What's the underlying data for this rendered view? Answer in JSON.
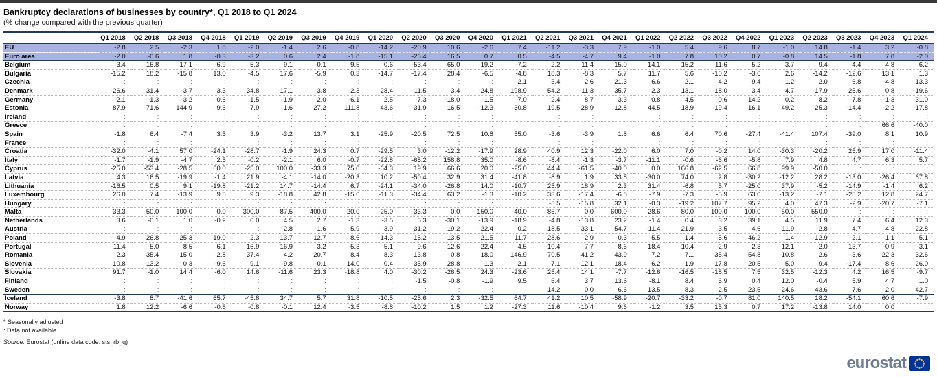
{
  "branding": {
    "logo_text": "eurostat"
  },
  "footer": {
    "note_asterisk": "* Seasonally adjusted",
    "note_colon": ": Data not available",
    "source_label": "Source:",
    "source_text": " Eurostat (online data code: sts_rb_q)"
  },
  "colors": {
    "highlight_row_bg": "#a9b3e1",
    "table_border": "#233a5e",
    "logo_gray_blue": "#6e7b93",
    "flag_blue": "#003399",
    "star_yellow": "#ffcc00"
  },
  "chart_data": {
    "type": "table",
    "title": "Bankruptcy declarations of businesses by country*, Q1 2018 to Q1 2024",
    "subtitle": "(% change compared with the previous quarter)",
    "unit": "% change compared with the previous quarter",
    "not_available_symbol": ":",
    "columns": [
      "Q1 2018",
      "Q2 2018",
      "Q3 2018",
      "Q4 2018",
      "Q1 2019",
      "Q2 2019",
      "Q3 2019",
      "Q4 2019",
      "Q1 2020",
      "Q2 2020",
      "Q3 2020",
      "Q4 2020",
      "Q1 2021",
      "Q2 2021",
      "Q3 2021",
      "Q4 2021",
      "Q1 2022",
      "Q2 2022",
      "Q3 2022",
      "Q4 2022",
      "Q1 2023",
      "Q2 2023",
      "Q3 2023",
      "Q4 2023",
      "Q1 2024"
    ],
    "rows": [
      {
        "label": "EU",
        "group": "aggregate",
        "values": [
          "-2.8",
          "2.5",
          "-2.3",
          "1.8",
          "-2.0",
          "-1.4",
          "2.6",
          "-0.8",
          "-14.2",
          "-20.9",
          "10.6",
          "-2.6",
          "7.4",
          "-11.2",
          "-3.3",
          "7.9",
          "-1.0",
          "5.4",
          "9.6",
          "8.7",
          "-1.0",
          "14.8",
          "-1.4",
          "3.2",
          "-0.8"
        ]
      },
      {
        "label": "Euro area",
        "group": "aggregate",
        "values": [
          "-2.0",
          "-0.6",
          "1.8",
          "-0.3",
          "-3.2",
          "0.6",
          "2.4",
          "-1.8",
          "-15.1",
          "-26.4",
          "16.5",
          "0.7",
          "0.5",
          "-4.5",
          "-4.7",
          "9.4",
          "-1.0",
          "7.8",
          "10.2",
          "0.7",
          "-0.8",
          "14.5",
          "-1.8",
          "7.8",
          "-2.0"
        ]
      },
      {
        "label": "Belgium",
        "group": "member",
        "values": [
          "-3.4",
          "-16.8",
          "17.1",
          "6.9",
          "-5.3",
          "9.1",
          "-0.1",
          "-9.5",
          "0.6",
          "-53.4",
          "65.0",
          "-19.2",
          "-7.2",
          "2.2",
          "11.4",
          "15.0",
          "14.1",
          "15.2",
          "-11.6",
          "5.2",
          "3.7",
          "9.4",
          "-4.4",
          "4.8",
          "6.2"
        ]
      },
      {
        "label": "Bulgaria",
        "group": "member",
        "values": [
          "-15.2",
          "18.2",
          "-15.8",
          "13.0",
          "-4.5",
          "17.6",
          "-5.9",
          "0.3",
          "-14.7",
          "-17.4",
          "28.4",
          "-6.5",
          "-4.8",
          "18.3",
          "-8.3",
          "5.7",
          "11.7",
          "5.6",
          "-10.2",
          "-3.6",
          "2.6",
          "-14.2",
          "-12.6",
          "13.1",
          "1.3"
        ]
      },
      {
        "label": "Czechia",
        "group": "member",
        "values": [
          ":",
          ":",
          ":",
          ":",
          ":",
          ":",
          ":",
          ":",
          ":",
          ":",
          ":",
          ":",
          "2.1",
          "3.4",
          "2.6",
          "21.3",
          "-6.6",
          "2.1",
          "-4.2",
          "-9.4",
          "-1.2",
          "2.0",
          "6.8",
          "-4.8",
          "13.3"
        ]
      },
      {
        "label": "Denmark",
        "group": "member",
        "values": [
          "-26.6",
          "31.4",
          "-3.7",
          "3.3",
          "34.8",
          "-17.1",
          "-3.8",
          "-2.3",
          "-28.4",
          "11.5",
          "3.4",
          "-24.8",
          "198.9",
          "-54.2",
          "-11.3",
          "35.7",
          "2.3",
          "13.1",
          "-18.0",
          "3.4",
          "-4.7",
          "-17.9",
          "25.6",
          "0.8",
          "-19.6"
        ]
      },
      {
        "label": "Germany",
        "group": "member",
        "values": [
          "-2.1",
          "-1.3",
          "-3.2",
          "-0.6",
          "1.5",
          "-1.9",
          "2.0",
          "-6.1",
          "2.5",
          "-7.3",
          "-18.0",
          "-1.5",
          "7.0",
          "-2.4",
          "-8.7",
          "3.3",
          "0.8",
          "4.5",
          "-0.6",
          "14.2",
          "-0.2",
          "8.2",
          "7.8",
          "-1.3",
          "-31.0"
        ]
      },
      {
        "label": "Estonia",
        "group": "member",
        "values": [
          "87.9",
          "-71.6",
          "144.9",
          "-9.6",
          "7.9",
          "1.6",
          "-27.2",
          "111.8",
          "-43.6",
          "31.9",
          "16.5",
          "-12.3",
          "-30.8",
          "19.5",
          "-28.9",
          "-12.8",
          "44.5",
          "-18.9",
          "-19.4",
          "16.1",
          "49.2",
          "25.3",
          "-14.4",
          "-2.2",
          "17.8"
        ]
      },
      {
        "label": "Ireland",
        "group": "member",
        "values": [
          ":",
          ":",
          ":",
          ":",
          ":",
          ":",
          ":",
          ":",
          ":",
          ":",
          ":",
          ":",
          ":",
          ":",
          ":",
          ":",
          ":",
          ":",
          ":",
          ":",
          ":",
          ":",
          ":",
          ":",
          ":"
        ]
      },
      {
        "label": "Greece",
        "group": "member",
        "values": [
          ":",
          ":",
          ":",
          ":",
          ":",
          ":",
          ":",
          ":",
          ":",
          ":",
          ":",
          ":",
          ":",
          ":",
          ":",
          ":",
          ":",
          ":",
          ":",
          ":",
          ":",
          ":",
          ":",
          "66.6",
          "-40.0"
        ]
      },
      {
        "label": "Spain",
        "group": "member",
        "values": [
          "-1.8",
          "6.4",
          "-7.4",
          "3.5",
          "3.9",
          "-3.2",
          "13.7",
          "3.1",
          "-25.9",
          "-20.5",
          "72.5",
          "10.8",
          "55.0",
          "-3.6",
          "-3.9",
          "1.8",
          "6.6",
          "6.4",
          "70.6",
          "-27.4",
          "-41.4",
          "107.4",
          "-39.0",
          "8.1",
          "10.9"
        ]
      },
      {
        "label": "France",
        "group": "member",
        "values": [
          ":",
          ":",
          ":",
          ":",
          ":",
          ":",
          ":",
          ":",
          ":",
          ":",
          ":",
          ":",
          ":",
          ":",
          ":",
          ":",
          ":",
          ":",
          ":",
          ":",
          ":",
          ":",
          ":",
          ":",
          ":"
        ]
      },
      {
        "label": "Croatia",
        "group": "member",
        "values": [
          "-32.0",
          "-4.1",
          "57.0",
          "-24.1",
          "-28.7",
          "-1.9",
          "24.3",
          "0.7",
          "-29.5",
          "3.0",
          "-12.2",
          "-17.9",
          "28.9",
          "40.9",
          "12.3",
          "-22.0",
          "6.0",
          "7.0",
          "-0.2",
          "14.0",
          "-30.3",
          "-20.2",
          "25.9",
          "17.0",
          "-11.4"
        ]
      },
      {
        "label": "Italy",
        "group": "member",
        "values": [
          "-1.7",
          "-1.9",
          "-4.7",
          "2.5",
          "-0.2",
          "-2.1",
          "6.0",
          "-0.7",
          "-22.8",
          "-65.2",
          "158.8",
          "35.0",
          "-8.6",
          "-8.4",
          "-1.3",
          "-3.7",
          "-11.1",
          "-0.6",
          "-6.6",
          "-5.8",
          "7.9",
          "4.8",
          "4.7",
          "6.3",
          "5.7"
        ]
      },
      {
        "label": "Cyprus",
        "group": "member",
        "values": [
          "-25.0",
          "-53.4",
          "-28.5",
          "60.0",
          "-25.0",
          "100.0",
          "-33.3",
          "75.0",
          "-64.3",
          "19.9",
          "66.6",
          "20.0",
          "-25.0",
          "44.4",
          "-61.5",
          "-40.0",
          "0.0",
          "166.8",
          "-62.5",
          "66.8",
          "99.9",
          "-50.0",
          ":",
          ":",
          ":"
        ]
      },
      {
        "label": "Latvia",
        "group": "member",
        "values": [
          "4.3",
          "16.5",
          "-19.9",
          "-1.4",
          "21.9",
          "-4.1",
          "-14.0",
          "-20.3",
          "10.2",
          "-50.4",
          "32.9",
          "31.4",
          "-41.8",
          "-8.9",
          "1.9",
          "33.8",
          "-30.0",
          "74.0",
          "2.8",
          "-30.2",
          "-12.2",
          "28.2",
          "-13.0",
          "-26.4",
          "67.8"
        ]
      },
      {
        "label": "Lithuania",
        "group": "member",
        "values": [
          "-16.5",
          "0.5",
          "9.1",
          "-19.8",
          "-21.2",
          "14.7",
          "-14.4",
          "6.7",
          "-24.1",
          "-34.0",
          "-26.8",
          "14.0",
          "-10.7",
          "25.9",
          "18.9",
          "2.3",
          "31.4",
          "-6.8",
          "5.7",
          "-25.0",
          "37.9",
          "-5.2",
          "-14.9",
          "-1.4",
          "6.2"
        ]
      },
      {
        "label": "Luxembourg",
        "group": "member",
        "values": [
          "26.0",
          "7.4",
          "-13.9",
          "9.5",
          "9.3",
          "-18.8",
          "42.8",
          "-15.6",
          "-11.3",
          "-34.4",
          "63.2",
          "-1.3",
          "-10.2",
          "33.6",
          "-17.4",
          "-6.8",
          "-7.9",
          "-7.3",
          "-5.9",
          "63.0",
          "-13.2",
          "-7.1",
          "-25.2",
          "12.8",
          "24.7"
        ]
      },
      {
        "label": "Hungary",
        "group": "member",
        "values": [
          ":",
          ":",
          ":",
          ":",
          ":",
          ":",
          ":",
          ":",
          ":",
          ":",
          ":",
          ":",
          ":",
          "-5.5",
          "-15.8",
          "32.1",
          "-0.3",
          "-19.2",
          "107.7",
          "95.2",
          "4.0",
          "47.3",
          "-2.9",
          "-20.7",
          "-7.1"
        ]
      },
      {
        "label": "Malta",
        "group": "member",
        "values": [
          "-33.3",
          "-50.0",
          "100.0",
          "0.0",
          "300.0",
          "-87.5",
          "400.0",
          "-20.0",
          "-25.0",
          "-33.3",
          "0.0",
          "150.0",
          "40.0",
          "-85.7",
          "0.0",
          "600.0",
          "-28.6",
          "-80.0",
          "100.0",
          "100.0",
          "-50.0",
          "550.0",
          ":",
          ":",
          ":"
        ]
      },
      {
        "label": "Netherlands",
        "group": "member",
        "values": [
          "3.6",
          "-0.1",
          "1.0",
          "-0.2",
          "0.0",
          "4.5",
          "2.7",
          "-1.3",
          "-3.5",
          "5.3",
          "-30.1",
          "-13.9",
          "-18.9",
          "-4.8",
          "-13.8",
          "23.2",
          "-1.4",
          "0.4",
          "3.2",
          "39.1",
          "4.5",
          "11.9",
          "7.4",
          "6.4",
          "12.3"
        ]
      },
      {
        "label": "Austria",
        "group": "member",
        "values": [
          ":",
          ":",
          ":",
          ":",
          ":",
          "2.8",
          "-1.6",
          "-5.9",
          "-3.9",
          "-31.2",
          "-19.2",
          "-22.4",
          "0.2",
          "18.5",
          "33.1",
          "54.7",
          "-11.4",
          "21.9",
          "-3.5",
          "-4.6",
          "11.9",
          "-2.8",
          "4.7",
          "4.8",
          "22.8"
        ]
      },
      {
        "label": "Poland",
        "group": "member",
        "values": [
          "-4.9",
          "26.8",
          "-25.3",
          "19.0",
          "-2.3",
          "-13.7",
          "12.7",
          "8.6",
          "-14.3",
          "15.2",
          "-13.5",
          "-21.5",
          "11.7",
          "-28.6",
          "2.9",
          "-0.3",
          "-5.5",
          "-1.4",
          "-5.6",
          "46.2",
          "1.4",
          "-12.9",
          "-2.1",
          "1.1",
          "-5.1"
        ]
      },
      {
        "label": "Portugal",
        "group": "member",
        "values": [
          "-11.4",
          "-5.0",
          "8.5",
          "-6.1",
          "-16.9",
          "16.9",
          "3.2",
          "-5.3",
          "-5.1",
          "9.6",
          "12.6",
          "-22.4",
          "4.5",
          "-10.4",
          "7.7",
          "-8.6",
          "-18.4",
          "10.4",
          "-2.9",
          "2.3",
          "12.1",
          "-2.0",
          "13.7",
          "-0.9",
          "-3.1"
        ]
      },
      {
        "label": "Romania",
        "group": "member",
        "values": [
          "2.3",
          "35.4",
          "-15.0",
          "-2.8",
          "37.4",
          "-4.2",
          "-20.7",
          "8.4",
          "8.3",
          "-13.8",
          "-0.8",
          "18.0",
          "146.9",
          "-70.5",
          "41.2",
          "-43.9",
          "-7.2",
          "7.1",
          "-35.4",
          "54.8",
          "-10.8",
          "2.6",
          "-3.6",
          "-22.3",
          "32.6"
        ]
      },
      {
        "label": "Slovenia",
        "group": "member",
        "values": [
          "10.8",
          "-13.2",
          "0.3",
          "-9.6",
          "9.1",
          "-9.8",
          "-0.1",
          "14.0",
          "0.4",
          "-35.9",
          "28.8",
          "-1.3",
          "-2.1",
          "-7.1",
          "-12.1",
          "18.4",
          "-6.2",
          "-1.9",
          "-17.8",
          "20.5",
          "5.0",
          "-9.4",
          "-17.4",
          "8.6",
          "26.0"
        ]
      },
      {
        "label": "Slovakia",
        "group": "member",
        "values": [
          "91.7",
          "-1.0",
          "14.4",
          "-6.0",
          "14.6",
          "-11.6",
          "23.3",
          "-18.8",
          "4.0",
          "-30.2",
          "-26.5",
          "24.3",
          "-23.6",
          "25.4",
          "14.1",
          "-7.7",
          "-12.6",
          "-16.5",
          "-18.5",
          "7.5",
          "32.5",
          "-12.3",
          "4.2",
          "16.5",
          "-9.7"
        ]
      },
      {
        "label": "Finland",
        "group": "member",
        "values": [
          ":",
          ":",
          ":",
          ":",
          ":",
          ":",
          ":",
          ":",
          ":",
          "-1.5",
          "-0.8",
          "-1.9",
          "9.5",
          "6.4",
          "3.7",
          "13.6",
          "-8.1",
          "8.4",
          "6.9",
          "0.4",
          "12.0",
          "-0.4",
          "5.9",
          "4.7",
          "1.0"
        ]
      },
      {
        "label": "Sweden",
        "group": "member",
        "values": [
          ":",
          ":",
          ":",
          ":",
          ":",
          ":",
          ":",
          ":",
          ":",
          ":",
          ":",
          ":",
          ":",
          "-14.2",
          "0.0",
          "-6.6",
          "13.5",
          "-8.3",
          "2.5",
          "23.5",
          "-24.6",
          "43.6",
          "7.6",
          "2.0",
          "42.7"
        ]
      },
      {
        "label": "Iceland",
        "group": "efta",
        "values": [
          "-3.8",
          "8.7",
          "-41.6",
          "65.7",
          "-45.8",
          "34.7",
          "5.7",
          "31.8",
          "-10.5",
          "-25.6",
          "2.3",
          "-32.5",
          "64.7",
          "41.2",
          "10.5",
          "-58.9",
          "-20.7",
          "-33.2",
          "-0.7",
          "81.0",
          "140.5",
          "18.2",
          "-54.1",
          "60.6",
          "-7.9"
        ]
      },
      {
        "label": "Norway",
        "group": "efta",
        "values": [
          "1.8",
          "12.2",
          "-6.6",
          "-0.6",
          "-0.8",
          "-0.1",
          "12.4",
          "-3.5",
          "-8.8",
          "-10.2",
          "1.5",
          "1.2",
          "-27.3",
          "11.6",
          "-10.4",
          "9.6",
          "-1.2",
          "3.5",
          "15.3",
          "0.7",
          "17.2",
          "-13.8",
          "14.0",
          "0.0",
          ":"
        ]
      }
    ],
    "notes": [
      "* Seasonally adjusted",
      ": Data not available"
    ],
    "source": "Source: Eurostat (online data code: sts_rb_q)"
  }
}
